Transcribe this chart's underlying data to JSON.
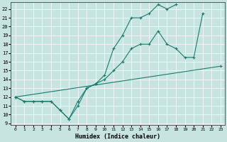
{
  "xlabel": "Humidex (Indice chaleur)",
  "bg_color": "#c8e4e0",
  "grid_color": "#ffffff",
  "line_color": "#1a7a6e",
  "xlim": [
    -0.5,
    23.5
  ],
  "ylim": [
    8.8,
    22.8
  ],
  "xticks": [
    0,
    1,
    2,
    3,
    4,
    5,
    6,
    7,
    8,
    9,
    10,
    11,
    12,
    13,
    14,
    15,
    16,
    17,
    18,
    19,
    20,
    21,
    22,
    23
  ],
  "yticks": [
    9,
    10,
    11,
    12,
    13,
    14,
    15,
    16,
    17,
    18,
    19,
    20,
    21,
    22
  ],
  "curve1_x": [
    0,
    1,
    2,
    3,
    4,
    5,
    6,
    7,
    8,
    9,
    10,
    11,
    12,
    13,
    14,
    15,
    16,
    17,
    18
  ],
  "curve1_y": [
    12,
    11.5,
    11.5,
    11.5,
    11.5,
    10.5,
    9.5,
    11,
    13,
    13.5,
    14.5,
    17.5,
    19,
    21,
    21,
    21.5,
    22.5,
    22,
    22.5
  ],
  "curve2_x": [
    0,
    1,
    2,
    3,
    4,
    5,
    6,
    7,
    8,
    9,
    10,
    11,
    12,
    13,
    14,
    15,
    16,
    17,
    18,
    19,
    20,
    21
  ],
  "curve2_y": [
    12,
    11.5,
    11.5,
    11.5,
    11.5,
    10.5,
    9.5,
    11.5,
    13,
    13.5,
    14,
    15,
    16,
    17.5,
    18,
    18,
    19.5,
    18,
    17.5,
    16.5,
    16.5,
    21.5
  ],
  "line3_x": [
    0,
    23
  ],
  "line3_y": [
    12,
    15.5
  ]
}
